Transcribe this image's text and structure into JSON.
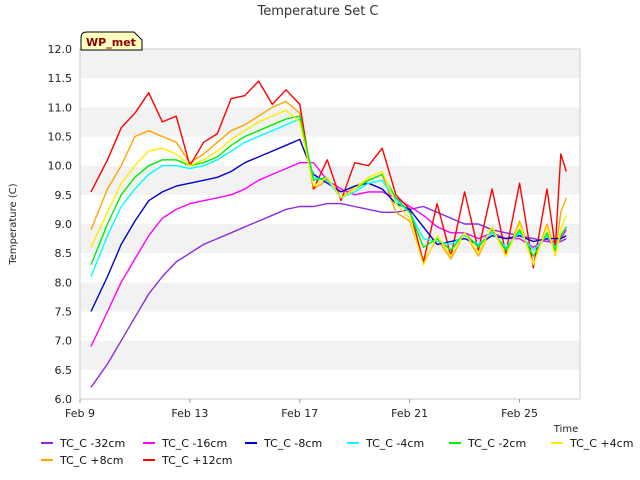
{
  "chart_data": {
    "type": "line",
    "title": "Temperature Set C",
    "xlabel": "Time",
    "ylabel": "Temperature (C)",
    "badge": "WP_met",
    "x_ticks": [
      "Feb 9",
      "Feb 13",
      "Feb 17",
      "Feb 21",
      "Feb 25"
    ],
    "x_tick_days": [
      9,
      13,
      17,
      21,
      25
    ],
    "xlim_days": [
      9,
      27.2
    ],
    "ylim": [
      6.0,
      12.0
    ],
    "y_ticks": [
      "6.0",
      "6.5",
      "7.0",
      "7.5",
      "8.0",
      "8.5",
      "9.0",
      "9.5",
      "10.0",
      "10.5",
      "11.0",
      "11.5",
      "12.0"
    ],
    "grid": "horizontal bands",
    "legend_position": "bottom",
    "x_days": [
      9.4,
      10.0,
      10.5,
      11.0,
      11.5,
      12.0,
      12.5,
      13.0,
      13.5,
      14.0,
      14.5,
      15.0,
      15.5,
      16.0,
      16.5,
      17.0,
      17.5,
      18.0,
      18.5,
      19.0,
      19.5,
      20.0,
      20.5,
      21.0,
      21.5,
      22.0,
      22.5,
      23.0,
      23.5,
      24.0,
      24.5,
      25.0,
      25.5,
      26.0,
      26.3,
      26.5,
      26.7
    ],
    "series": [
      {
        "name": "TC_C -32cm",
        "color": "#8a2be2",
        "values": [
          6.2,
          6.6,
          7.0,
          7.4,
          7.8,
          8.1,
          8.35,
          8.5,
          8.65,
          8.75,
          8.85,
          8.95,
          9.05,
          9.15,
          9.25,
          9.3,
          9.3,
          9.35,
          9.35,
          9.3,
          9.25,
          9.2,
          9.2,
          9.25,
          9.3,
          9.2,
          9.1,
          9.0,
          9.0,
          8.9,
          8.85,
          8.8,
          8.75,
          8.7,
          8.7,
          8.7,
          8.75
        ]
      },
      {
        "name": "TC_C +8cm",
        "color": "#ffa500",
        "values": [
          8.9,
          9.6,
          10.0,
          10.5,
          10.6,
          10.5,
          10.4,
          10.05,
          10.2,
          10.4,
          10.6,
          10.7,
          10.85,
          11.0,
          11.1,
          10.9,
          9.6,
          9.75,
          9.45,
          9.65,
          9.75,
          9.85,
          9.2,
          9.05,
          8.35,
          8.75,
          8.4,
          8.85,
          8.45,
          8.95,
          8.45,
          9.05,
          8.3,
          9.0,
          8.5,
          9.2,
          9.45
        ]
      },
      {
        "name": "TC_C -16cm",
        "color": "#ff00ff",
        "values": [
          6.9,
          7.5,
          8.0,
          8.4,
          8.8,
          9.1,
          9.25,
          9.35,
          9.4,
          9.45,
          9.5,
          9.6,
          9.75,
          9.85,
          9.95,
          10.05,
          10.05,
          9.75,
          9.6,
          9.5,
          9.55,
          9.55,
          9.45,
          9.3,
          9.15,
          8.95,
          8.85,
          8.85,
          8.75,
          8.85,
          8.75,
          8.75,
          8.6,
          8.75,
          8.6,
          8.75,
          8.9
        ]
      },
      {
        "name": "TC_C +12cm",
        "color": "#ff0000",
        "values": [
          9.55,
          10.1,
          10.65,
          10.9,
          11.25,
          10.75,
          10.85,
          10.0,
          10.4,
          10.55,
          11.15,
          11.2,
          11.45,
          11.05,
          11.3,
          11.05,
          9.6,
          10.1,
          9.4,
          10.05,
          10.0,
          10.3,
          9.5,
          9.25,
          8.35,
          9.35,
          8.45,
          9.55,
          8.55,
          9.6,
          8.5,
          9.7,
          8.25,
          9.6,
          8.6,
          10.2,
          9.9
        ]
      },
      {
        "name": "TC_C -8cm",
        "color": "#0000cd",
        "values": [
          7.5,
          8.1,
          8.65,
          9.05,
          9.4,
          9.55,
          9.65,
          9.7,
          9.75,
          9.8,
          9.9,
          10.05,
          10.15,
          10.25,
          10.35,
          10.45,
          9.85,
          9.7,
          9.55,
          9.65,
          9.7,
          9.6,
          9.35,
          9.25,
          8.95,
          8.65,
          8.7,
          8.75,
          8.65,
          8.8,
          8.75,
          8.8,
          8.7,
          8.75,
          8.75,
          8.75,
          8.8
        ]
      },
      {
        "name": "TC_C -4cm",
        "color": "#00ffff",
        "values": [
          8.1,
          8.8,
          9.3,
          9.6,
          9.85,
          10.0,
          10.0,
          9.95,
          10.0,
          10.1,
          10.25,
          10.4,
          10.5,
          10.6,
          10.7,
          10.8,
          9.8,
          9.75,
          9.45,
          9.55,
          9.7,
          9.75,
          9.4,
          9.2,
          8.75,
          8.7,
          8.65,
          8.8,
          8.65,
          8.85,
          8.6,
          8.85,
          8.55,
          8.8,
          8.6,
          8.8,
          8.95
        ]
      },
      {
        "name": "TC_C -2cm",
        "color": "#00ee00",
        "values": [
          8.3,
          9.0,
          9.5,
          9.8,
          10.0,
          10.1,
          10.1,
          10.0,
          10.05,
          10.15,
          10.35,
          10.5,
          10.6,
          10.7,
          10.8,
          10.85,
          9.75,
          9.8,
          9.45,
          9.6,
          9.75,
          9.85,
          9.45,
          9.2,
          8.6,
          8.75,
          8.55,
          8.85,
          8.6,
          8.9,
          8.55,
          8.9,
          8.45,
          8.85,
          8.55,
          8.8,
          8.95
        ]
      },
      {
        "name": "TC_C +4cm",
        "color": "#ffee00",
        "values": [
          8.6,
          9.2,
          9.7,
          10.0,
          10.25,
          10.3,
          10.2,
          10.0,
          10.1,
          10.25,
          10.45,
          10.6,
          10.75,
          10.85,
          10.95,
          10.75,
          9.65,
          9.8,
          9.45,
          9.6,
          9.8,
          9.9,
          9.35,
          9.1,
          8.3,
          8.8,
          8.45,
          8.85,
          8.5,
          8.95,
          8.45,
          9.0,
          8.3,
          8.95,
          8.45,
          8.9,
          9.15
        ]
      }
    ]
  },
  "legend_order": [
    0,
    2,
    4,
    5,
    6,
    7,
    1,
    3
  ]
}
